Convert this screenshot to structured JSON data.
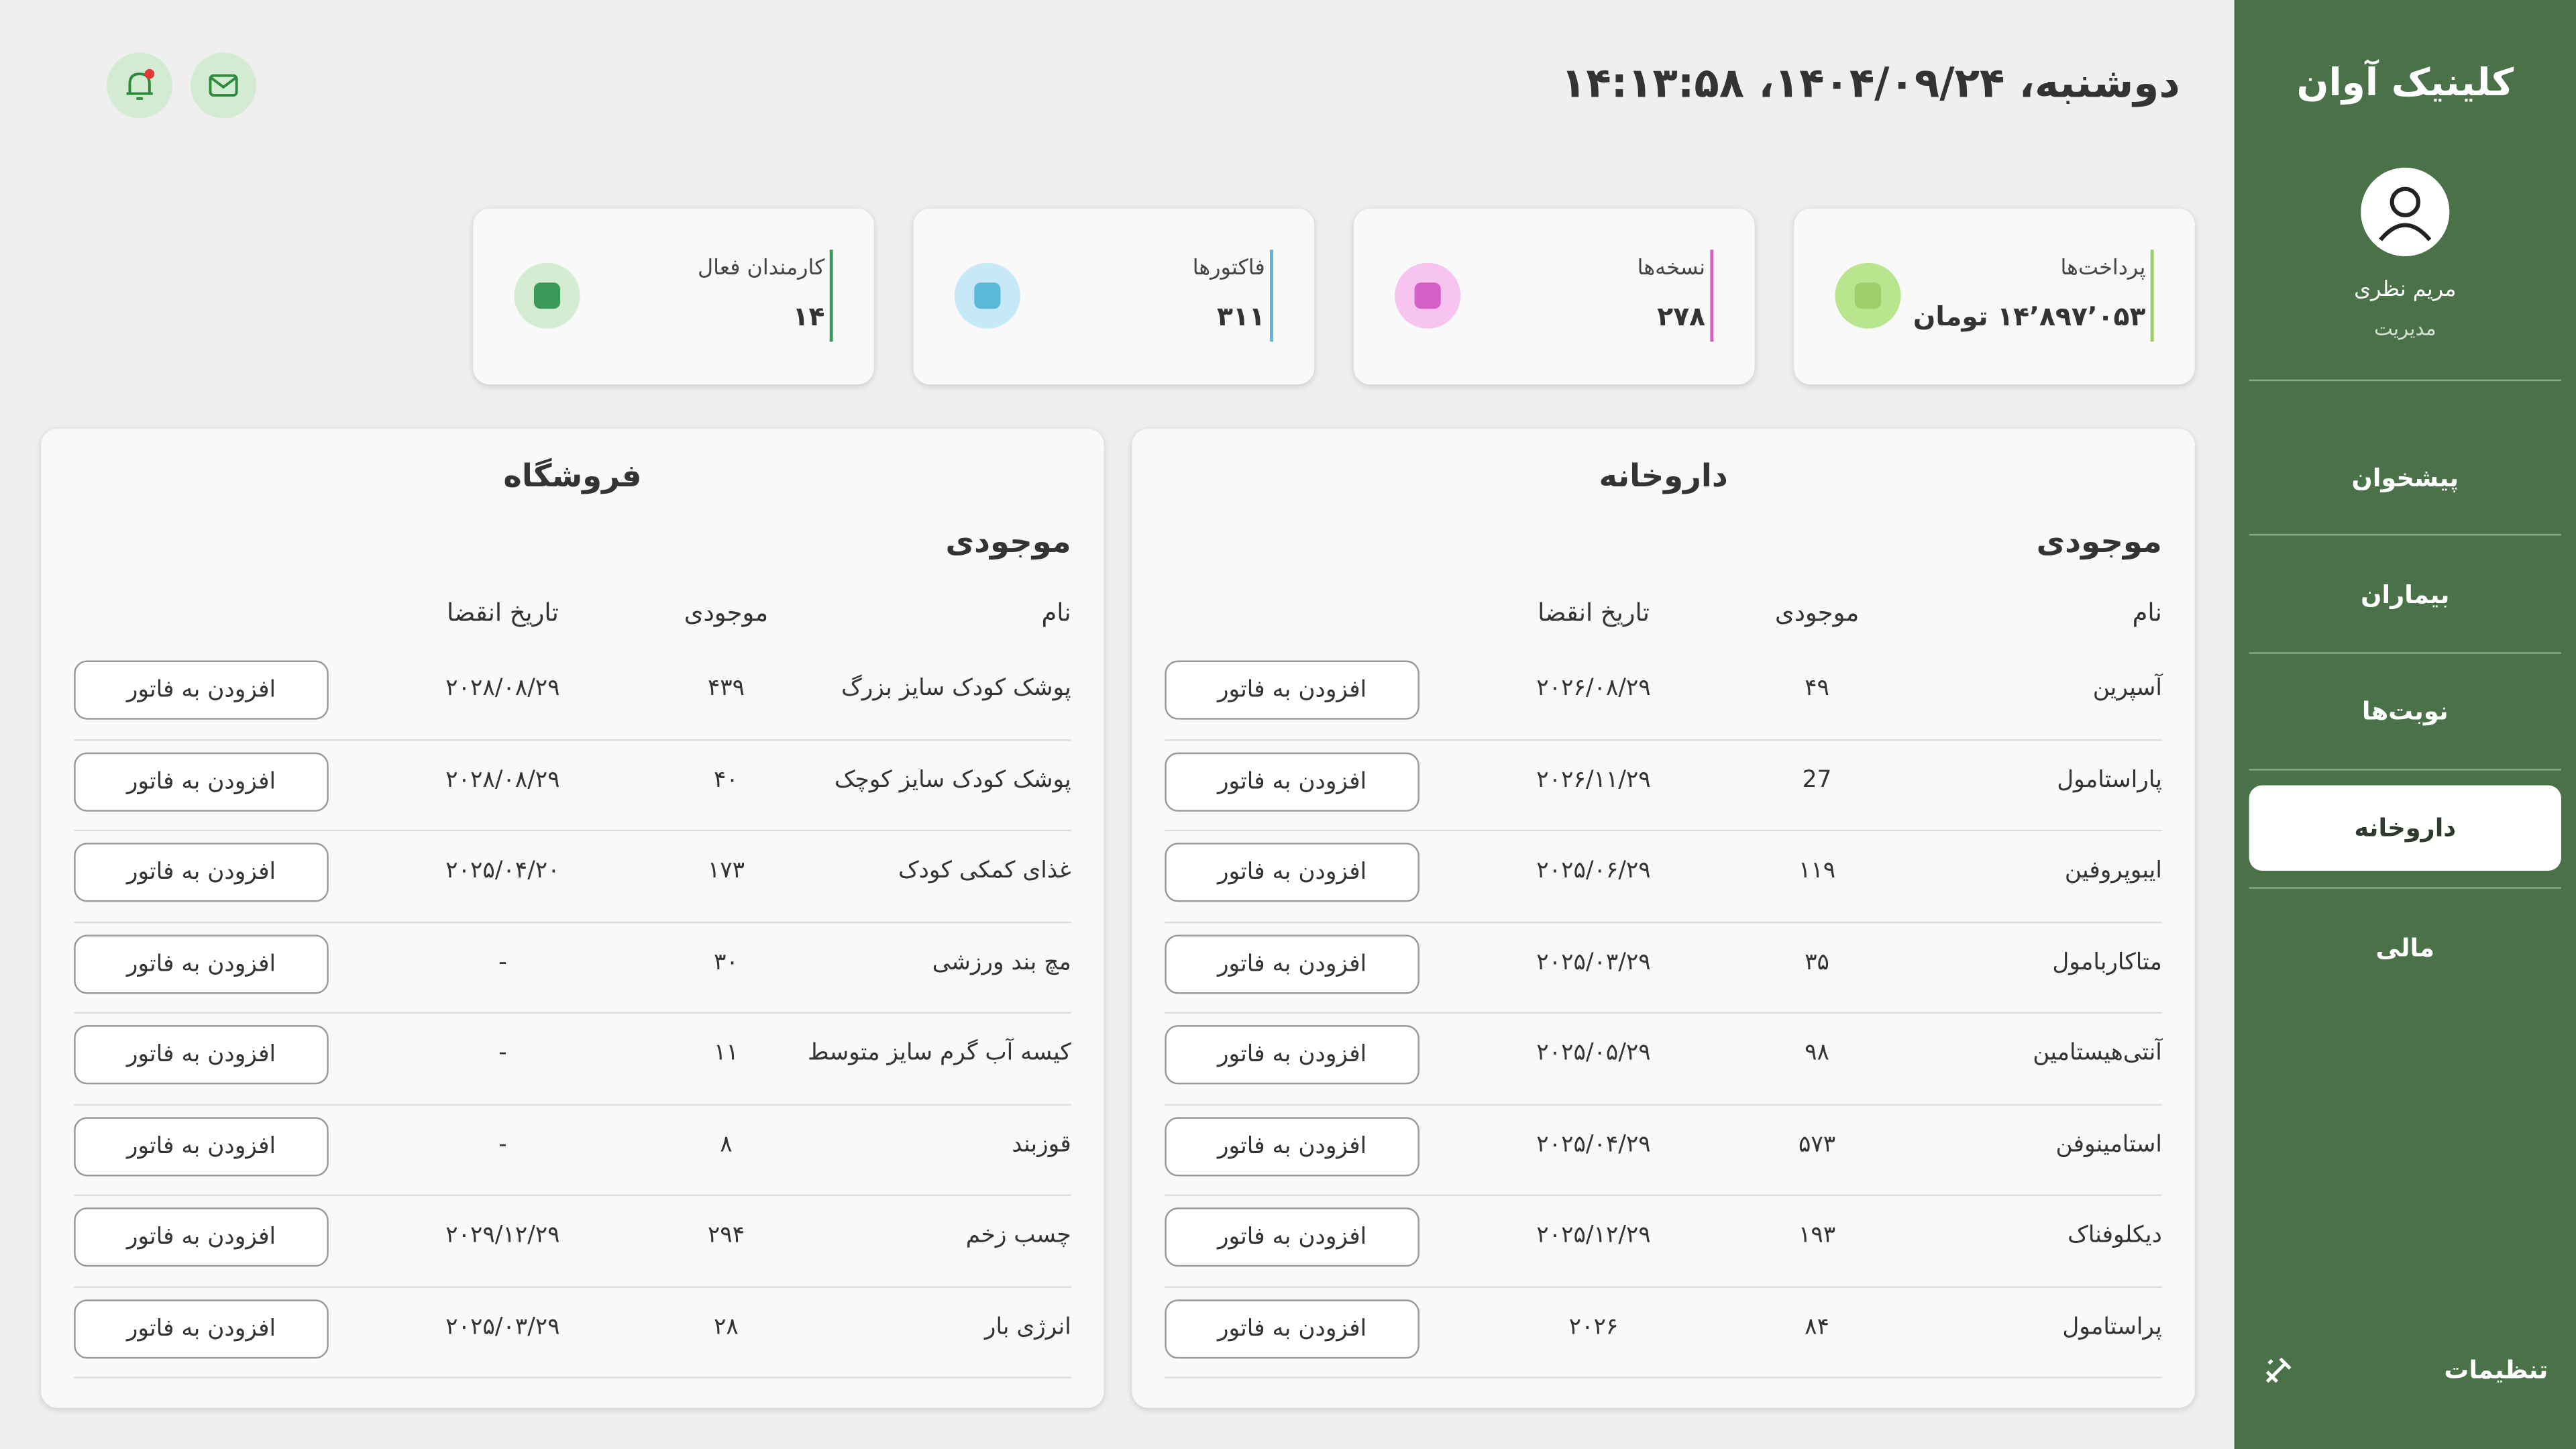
{
  "sidebar": {
    "title": "کلینیک آوان",
    "user_name": "مریم نظری",
    "user_role": "مدیریت",
    "nav": [
      "پیشخوان",
      "بیماران",
      "نوبت‌ها",
      "داروخانه",
      "مالی"
    ],
    "active_nav": 3,
    "settings": "تنظیمات"
  },
  "header": {
    "datetime": "دوشنبه، ۱۴۰۴/۰۹/۲۴، ۱۴:۱۳:۵۸"
  },
  "stats": [
    {
      "label": "پرداخت‌ها",
      "value": "۱۴٬۸۹۷٬۰۵۳ تومان",
      "color": "#9ccf6a"
    },
    {
      "label": "نسخه‌ها",
      "value": "۲۷۸",
      "color": "#d65fc6"
    },
    {
      "label": "فاکتورها",
      "value": "۳۱۱",
      "color": "#5bb8d8"
    },
    {
      "label": "کارمندان فعال",
      "value": "۱۴",
      "color": "#3b9a5a"
    }
  ],
  "panels": [
    {
      "title": "داروخانه",
      "subtitle": "موجودی",
      "headers": [
        "نام",
        "موجودی",
        "تاریخ انقضا"
      ],
      "button_label": "افزودن به فاتور",
      "rows": [
        [
          "آسپرین",
          "۴۹",
          "۲۰۲۶/۰۸/۲۹"
        ],
        [
          "پاراستامول",
          "27",
          "۲۰۲۶/۱۱/۲۹"
        ],
        [
          "ایبوپروفین",
          "۱۱۹",
          "۲۰۲۵/۰۶/۲۹"
        ],
        [
          "متاکاربامول",
          "۳۵",
          "۲۰۲۵/۰۳/۲۹"
        ],
        [
          "آنتی‌هیستامین",
          "۹۸",
          "۲۰۲۵/۰۵/۲۹"
        ],
        [
          "استامینوفن",
          "۵۷۳",
          "۲۰۲۵/۰۴/۲۹"
        ],
        [
          "دیکلوفناک",
          "۱۹۳",
          "۲۰۲۵/۱۲/۲۹"
        ],
        [
          "پراستامول",
          "۸۴",
          "۲۰۲۶"
        ]
      ]
    },
    {
      "title": "فروشگاه",
      "subtitle": "موجودی",
      "headers": [
        "نام",
        "موجودی",
        "تاریخ انقضا"
      ],
      "button_label": "افزودن به فاتور",
      "rows": [
        [
          "پوشک کودک سایز بزرگ",
          "۴۳۹",
          "۲۰۲۸/۰۸/۲۹"
        ],
        [
          "پوشک کودک سایز کوچک",
          "۴۰",
          "۲۰۲۸/۰۸/۲۹"
        ],
        [
          "غذای کمکی کودک",
          "۱۷۳",
          "۲۰۲۵/۰۴/۲۰"
        ],
        [
          "مچ بند ورزشی",
          "۳۰",
          "-"
        ],
        [
          "کیسه آب گرم سایز متوسط",
          "۱۱",
          "-"
        ],
        [
          "قوزبند",
          "۸",
          "-"
        ],
        [
          "چسب زخم",
          "۲۹۴",
          "۲۰۲۹/۱۲/۲۹"
        ],
        [
          "انرژی بار",
          "۲۸",
          "۲۰۲۵/۰۳/۲۹"
        ]
      ]
    }
  ]
}
